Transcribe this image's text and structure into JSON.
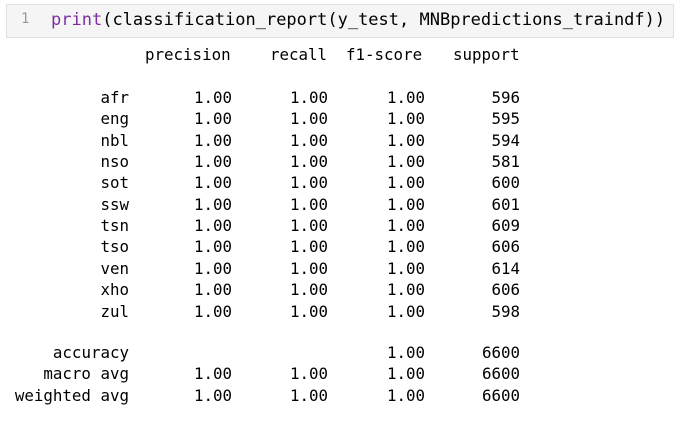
{
  "cell": {
    "line_number": "1",
    "code": {
      "fn": "print",
      "open": "(",
      "inner": "classification_report(y_test, MNBpredictions_traindf)",
      "close": ")"
    }
  },
  "report": {
    "headers": [
      "precision",
      "recall",
      "f1-score",
      "support"
    ],
    "rows": [
      {
        "label": "afr",
        "precision": "1.00",
        "recall": "1.00",
        "f1": "1.00",
        "support": "596"
      },
      {
        "label": "eng",
        "precision": "1.00",
        "recall": "1.00",
        "f1": "1.00",
        "support": "595"
      },
      {
        "label": "nbl",
        "precision": "1.00",
        "recall": "1.00",
        "f1": "1.00",
        "support": "594"
      },
      {
        "label": "nso",
        "precision": "1.00",
        "recall": "1.00",
        "f1": "1.00",
        "support": "581"
      },
      {
        "label": "sot",
        "precision": "1.00",
        "recall": "1.00",
        "f1": "1.00",
        "support": "600"
      },
      {
        "label": "ssw",
        "precision": "1.00",
        "recall": "1.00",
        "f1": "1.00",
        "support": "601"
      },
      {
        "label": "tsn",
        "precision": "1.00",
        "recall": "1.00",
        "f1": "1.00",
        "support": "609"
      },
      {
        "label": "tso",
        "precision": "1.00",
        "recall": "1.00",
        "f1": "1.00",
        "support": "606"
      },
      {
        "label": "ven",
        "precision": "1.00",
        "recall": "1.00",
        "f1": "1.00",
        "support": "614"
      },
      {
        "label": "xho",
        "precision": "1.00",
        "recall": "1.00",
        "f1": "1.00",
        "support": "606"
      },
      {
        "label": "zul",
        "precision": "1.00",
        "recall": "1.00",
        "f1": "1.00",
        "support": "598"
      }
    ],
    "summary": [
      {
        "label": "accuracy",
        "precision": "",
        "recall": "",
        "f1": "1.00",
        "support": "6600"
      },
      {
        "label": "macro avg",
        "precision": "1.00",
        "recall": "1.00",
        "f1": "1.00",
        "support": "6600"
      },
      {
        "label": "weighted avg",
        "precision": "1.00",
        "recall": "1.00",
        "f1": "1.00",
        "support": "6600"
      }
    ]
  }
}
